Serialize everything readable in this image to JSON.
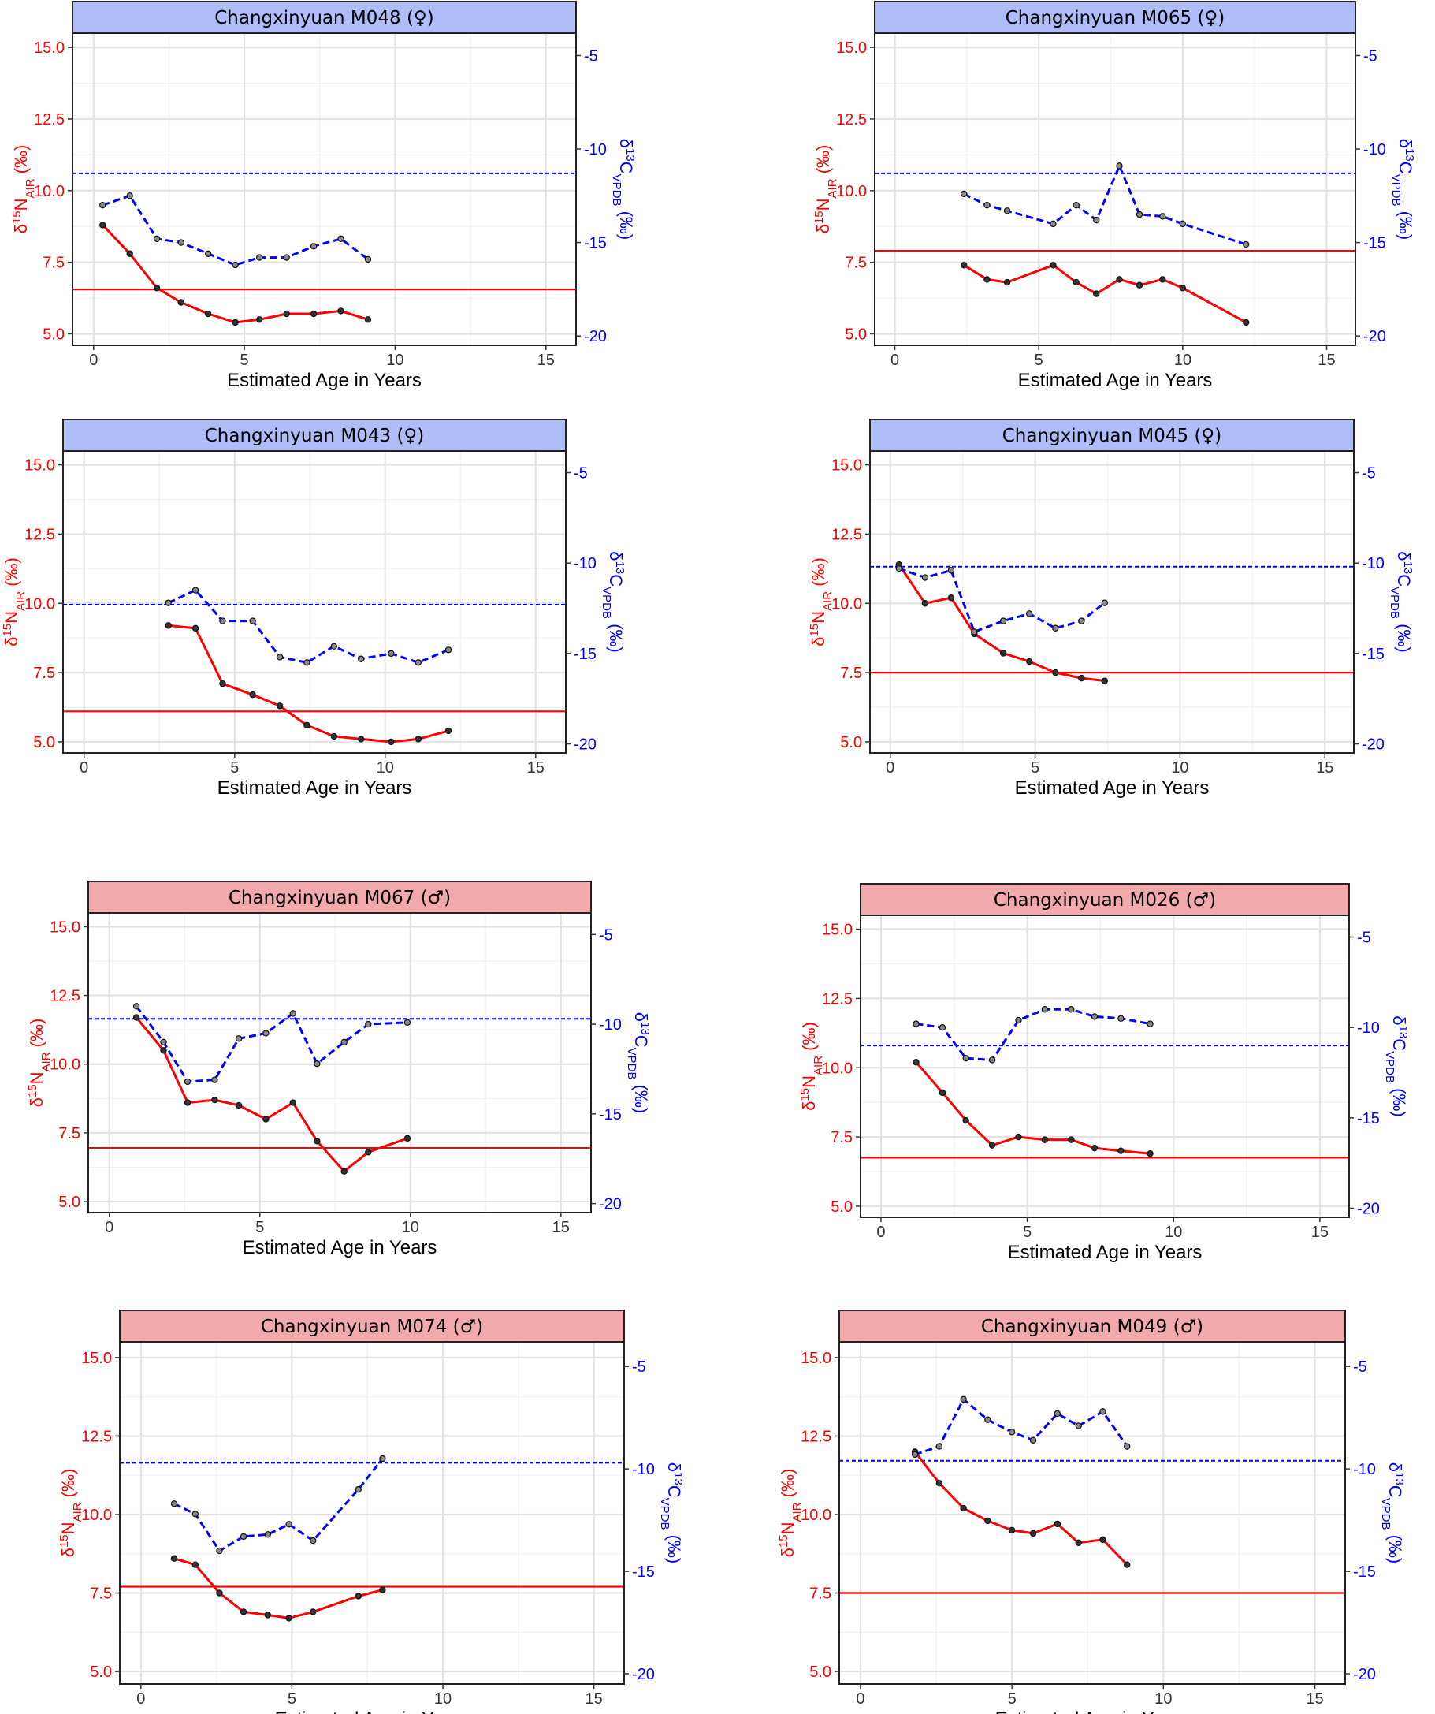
{
  "colors": {
    "nitrogen": "#ff0000",
    "carbon": "#0000ff",
    "female_strip": "#aebcf7",
    "male_strip": "#f2a9ab",
    "grid_major": "#e3e3e3",
    "grid_minor": "#f2f2f2",
    "point_fill": "#888888"
  },
  "axis_labels": {
    "x": "Estimated Age in Years",
    "y_left": "δ¹⁵N_AIR (‰)",
    "y_right": "δ¹³C_VPDB (‰)"
  },
  "chart_data": [
    {
      "type": "line",
      "title": "Changxinyuan M048 (♀)",
      "sex": "female",
      "xlabel": "Estimated Age in Years",
      "ylabel": "δ15N AIR (‰)",
      "ylabel_right": "δ13C VPDB (‰)",
      "xlim": [
        -0.7,
        16.0
      ],
      "ylim": [
        4.6,
        15.5
      ],
      "ylim_right": [
        -20.5,
        -3.8
      ],
      "x_ticks": [
        "0",
        "5",
        "10",
        "15"
      ],
      "y_ticks": [
        "5.0",
        "7.5",
        "10.0",
        "12.5",
        "15.0"
      ],
      "y_right_ticks": [
        "-20",
        "-15",
        "-10",
        "-5"
      ],
      "grid": true,
      "series": [
        {
          "name": "δ15N",
          "axis": "left",
          "x": [
            0.3,
            1.2,
            2.1,
            2.9,
            3.8,
            4.7,
            5.5,
            6.4,
            7.3,
            8.2,
            9.1
          ],
          "y": [
            8.8,
            7.8,
            6.6,
            6.1,
            5.7,
            5.4,
            5.5,
            5.7,
            5.7,
            5.8,
            5.5
          ]
        },
        {
          "name": "δ13C",
          "axis": "right",
          "x": [
            0.3,
            1.2,
            2.1,
            2.9,
            3.8,
            4.7,
            5.5,
            6.4,
            7.3,
            8.2,
            9.1
          ],
          "y": [
            -13.0,
            -12.5,
            -14.8,
            -15.0,
            -15.6,
            -16.2,
            -15.8,
            -15.8,
            -15.2,
            -14.8,
            -15.9
          ]
        }
      ],
      "reference_lines": {
        "n_mean": 6.55,
        "c_mean": -11.3
      }
    },
    {
      "type": "line",
      "title": "Changxinyuan M065 (♀)",
      "sex": "female",
      "xlabel": "Estimated Age in Years",
      "ylabel": "δ15N AIR (‰)",
      "ylabel_right": "δ13C VPDB (‰)",
      "xlim": [
        -0.7,
        16.0
      ],
      "ylim": [
        4.6,
        15.5
      ],
      "ylim_right": [
        -20.5,
        -3.8
      ],
      "x_ticks": [
        "0",
        "5",
        "10",
        "15"
      ],
      "y_ticks": [
        "5.0",
        "7.5",
        "10.0",
        "12.5",
        "15.0"
      ],
      "y_right_ticks": [
        "-20",
        "-15",
        "-10",
        "-5"
      ],
      "grid": true,
      "series": [
        {
          "name": "δ15N",
          "axis": "left",
          "x": [
            2.4,
            3.2,
            3.9,
            5.5,
            6.3,
            7.0,
            7.8,
            8.5,
            9.3,
            10.0,
            12.2
          ],
          "y": [
            7.4,
            6.9,
            6.8,
            7.4,
            6.8,
            6.4,
            6.9,
            6.7,
            6.9,
            6.6,
            5.4
          ]
        },
        {
          "name": "δ13C",
          "axis": "right",
          "x": [
            2.4,
            3.2,
            3.9,
            5.5,
            6.3,
            7.0,
            7.8,
            8.5,
            9.3,
            10.0,
            12.2
          ],
          "y": [
            -12.4,
            -13.0,
            -13.3,
            -14.0,
            -13.0,
            -13.8,
            -10.9,
            -13.5,
            -13.6,
            -14.0,
            -15.1
          ]
        }
      ],
      "reference_lines": {
        "n_mean": 7.9,
        "c_mean": -11.3
      }
    },
    {
      "type": "line",
      "title": "Changxinyuan M043 (♀)",
      "sex": "female",
      "xlabel": "Estimated Age in Years",
      "ylabel": "δ15N AIR (‰)",
      "ylabel_right": "δ13C VPDB (‰)",
      "xlim": [
        -0.7,
        16.0
      ],
      "ylim": [
        4.6,
        15.5
      ],
      "ylim_right": [
        -20.5,
        -3.8
      ],
      "x_ticks": [
        "0",
        "5",
        "10",
        "15"
      ],
      "y_ticks": [
        "5.0",
        "7.5",
        "10.0",
        "12.5",
        "15.0"
      ],
      "y_right_ticks": [
        "-20",
        "-15",
        "-10",
        "-5"
      ],
      "grid": true,
      "series": [
        {
          "name": "δ15N",
          "axis": "left",
          "x": [
            2.8,
            3.7,
            4.6,
            5.6,
            6.5,
            7.4,
            8.3,
            9.2,
            10.2,
            11.1,
            12.1
          ],
          "y": [
            9.2,
            9.1,
            7.1,
            6.7,
            6.3,
            5.6,
            5.2,
            5.1,
            5.0,
            5.1,
            5.4
          ]
        },
        {
          "name": "δ13C",
          "axis": "right",
          "x": [
            2.8,
            3.7,
            4.6,
            5.6,
            6.5,
            7.4,
            8.3,
            9.2,
            10.2,
            11.1,
            12.1
          ],
          "y": [
            -12.2,
            -11.5,
            -13.2,
            -13.2,
            -15.2,
            -15.5,
            -14.6,
            -15.3,
            -15.0,
            -15.5,
            -14.8
          ]
        }
      ],
      "reference_lines": {
        "n_mean": 6.1,
        "c_mean": -12.3
      }
    },
    {
      "type": "line",
      "title": "Changxinyuan M045 (♀)",
      "sex": "female",
      "xlabel": "Estimated Age in Years",
      "ylabel": "δ15N AIR (‰)",
      "ylabel_right": "δ13C VPDB (‰)",
      "xlim": [
        -0.7,
        16.0
      ],
      "ylim": [
        4.6,
        15.5
      ],
      "ylim_right": [
        -20.5,
        -3.8
      ],
      "x_ticks": [
        "0",
        "5",
        "10",
        "15"
      ],
      "y_ticks": [
        "5.0",
        "7.5",
        "10.0",
        "12.5",
        "15.0"
      ],
      "y_right_ticks": [
        "-20",
        "-15",
        "-10",
        "-5"
      ],
      "grid": true,
      "series": [
        {
          "name": "δ15N",
          "axis": "left",
          "x": [
            0.3,
            1.2,
            2.1,
            2.9,
            3.9,
            4.8,
            5.7,
            6.6,
            7.4
          ],
          "y": [
            11.4,
            10.0,
            10.2,
            8.9,
            8.2,
            7.9,
            7.5,
            7.3,
            7.2
          ]
        },
        {
          "name": "δ13C",
          "axis": "right",
          "x": [
            0.3,
            1.2,
            2.1,
            2.9,
            3.9,
            4.8,
            5.7,
            6.6,
            7.4
          ],
          "y": [
            -10.3,
            -10.8,
            -10.4,
            -13.8,
            -13.2,
            -12.8,
            -13.6,
            -13.2,
            -12.2
          ]
        }
      ],
      "reference_lines": {
        "n_mean": 7.5,
        "c_mean": -10.2
      }
    },
    {
      "type": "line",
      "title": "Changxinyuan M067 (♂)",
      "sex": "male",
      "xlabel": "Estimated Age in Years",
      "ylabel": "δ15N AIR (‰)",
      "ylabel_right": "δ13C VPDB (‰)",
      "xlim": [
        -0.7,
        16.0
      ],
      "ylim": [
        4.6,
        15.5
      ],
      "ylim_right": [
        -20.5,
        -3.8
      ],
      "x_ticks": [
        "0",
        "5",
        "10",
        "15"
      ],
      "y_ticks": [
        "5.0",
        "7.5",
        "10.0",
        "12.5",
        "15.0"
      ],
      "y_right_ticks": [
        "-20",
        "-15",
        "-10",
        "-5"
      ],
      "grid": true,
      "series": [
        {
          "name": "δ15N",
          "axis": "left",
          "x": [
            0.9,
            1.8,
            2.6,
            3.5,
            4.3,
            5.2,
            6.1,
            6.9,
            7.8,
            8.6,
            9.9
          ],
          "y": [
            11.7,
            10.5,
            8.6,
            8.7,
            8.5,
            8.0,
            8.6,
            7.2,
            6.1,
            6.8,
            7.3
          ]
        },
        {
          "name": "δ13C",
          "axis": "right",
          "x": [
            0.9,
            1.8,
            2.6,
            3.5,
            4.3,
            5.2,
            6.1,
            6.9,
            7.8,
            8.6,
            9.9
          ],
          "y": [
            -9.0,
            -11.0,
            -13.2,
            -13.1,
            -10.8,
            -10.5,
            -9.4,
            -12.2,
            -11.0,
            -10.0,
            -9.9
          ]
        }
      ],
      "reference_lines": {
        "n_mean": 6.95,
        "c_mean": -9.7
      }
    },
    {
      "type": "line",
      "title": "Changxinyuan M026 (♂)",
      "sex": "male",
      "xlabel": "Estimated Age in Years",
      "ylabel": "δ15N AIR (‰)",
      "ylabel_right": "δ13C VPDB (‰)",
      "xlim": [
        -0.7,
        16.0
      ],
      "ylim": [
        4.6,
        15.5
      ],
      "ylim_right": [
        -20.5,
        -3.8
      ],
      "x_ticks": [
        "0",
        "5",
        "10",
        "15"
      ],
      "y_ticks": [
        "5.0",
        "7.5",
        "10.0",
        "12.5",
        "15.0"
      ],
      "y_right_ticks": [
        "-20",
        "-15",
        "-10",
        "-5"
      ],
      "grid": true,
      "series": [
        {
          "name": "δ15N",
          "axis": "left",
          "x": [
            1.2,
            2.1,
            2.9,
            3.8,
            4.7,
            5.6,
            6.5,
            7.3,
            8.2,
            9.2
          ],
          "y": [
            10.2,
            9.1,
            8.1,
            7.2,
            7.5,
            7.4,
            7.4,
            7.1,
            7.0,
            6.9
          ]
        },
        {
          "name": "δ13C",
          "axis": "right",
          "x": [
            1.2,
            2.1,
            2.9,
            3.8,
            4.7,
            5.6,
            6.5,
            7.3,
            8.2,
            9.2
          ],
          "y": [
            -9.8,
            -10.0,
            -11.7,
            -11.8,
            -9.6,
            -9.0,
            -9.0,
            -9.4,
            -9.5,
            -9.8
          ]
        }
      ],
      "reference_lines": {
        "n_mean": 6.75,
        "c_mean": -11.0
      }
    },
    {
      "type": "line",
      "title": "Changxinyuan M074 (♂)",
      "sex": "male",
      "xlabel": "Estimated Age in Years",
      "ylabel": "δ15N AIR (‰)",
      "ylabel_right": "δ13C VPDB (‰)",
      "xlim": [
        -0.7,
        16.0
      ],
      "ylim": [
        4.6,
        15.5
      ],
      "ylim_right": [
        -20.5,
        -3.8
      ],
      "x_ticks": [
        "0",
        "5",
        "10",
        "15"
      ],
      "y_ticks": [
        "5.0",
        "7.5",
        "10.0",
        "12.5",
        "15.0"
      ],
      "y_right_ticks": [
        "-20",
        "-15",
        "-10",
        "-5"
      ],
      "grid": true,
      "series": [
        {
          "name": "δ15N",
          "axis": "left",
          "x": [
            1.1,
            1.8,
            2.6,
            3.4,
            4.2,
            4.9,
            5.7,
            7.2,
            8.0
          ],
          "y": [
            8.6,
            8.4,
            7.5,
            6.9,
            6.8,
            6.7,
            6.9,
            7.4,
            7.6
          ]
        },
        {
          "name": "δ13C",
          "axis": "right",
          "x": [
            1.1,
            1.8,
            2.6,
            3.4,
            4.2,
            4.9,
            5.7,
            7.2,
            8.0
          ],
          "y": [
            -11.7,
            -12.2,
            -14.0,
            -13.3,
            -13.2,
            -12.7,
            -13.5,
            -11.0,
            -9.5
          ]
        }
      ],
      "reference_lines": {
        "n_mean": 7.7,
        "c_mean": -9.7
      }
    },
    {
      "type": "line",
      "title": "Changxinyuan M049 (♂)",
      "sex": "male",
      "xlabel": "Estimated Age in Years",
      "ylabel": "δ15N AIR (‰)",
      "ylabel_right": "δ13C VPDB (‰)",
      "xlim": [
        -0.7,
        16.0
      ],
      "ylim": [
        4.6,
        15.5
      ],
      "ylim_right": [
        -20.5,
        -3.8
      ],
      "x_ticks": [
        "0",
        "5",
        "10",
        "15"
      ],
      "y_ticks": [
        "5.0",
        "7.5",
        "10.0",
        "12.5",
        "15.0"
      ],
      "y_right_ticks": [
        "-20",
        "-15",
        "-10",
        "-5"
      ],
      "grid": true,
      "series": [
        {
          "name": "δ15N",
          "axis": "left",
          "x": [
            1.8,
            2.6,
            3.4,
            4.2,
            5.0,
            5.7,
            6.5,
            7.2,
            8.0,
            8.8
          ],
          "y": [
            12.0,
            11.0,
            10.2,
            9.8,
            9.5,
            9.4,
            9.7,
            9.1,
            9.2,
            8.4
          ]
        },
        {
          "name": "δ13C",
          "axis": "right",
          "x": [
            1.8,
            2.6,
            3.4,
            4.2,
            5.0,
            5.7,
            6.5,
            7.2,
            8.0,
            8.8
          ],
          "y": [
            -9.3,
            -8.9,
            -6.6,
            -7.6,
            -8.2,
            -8.6,
            -7.3,
            -7.9,
            -7.2,
            -8.9
          ]
        }
      ],
      "reference_lines": {
        "n_mean": 7.5,
        "c_mean": -9.6
      }
    }
  ]
}
